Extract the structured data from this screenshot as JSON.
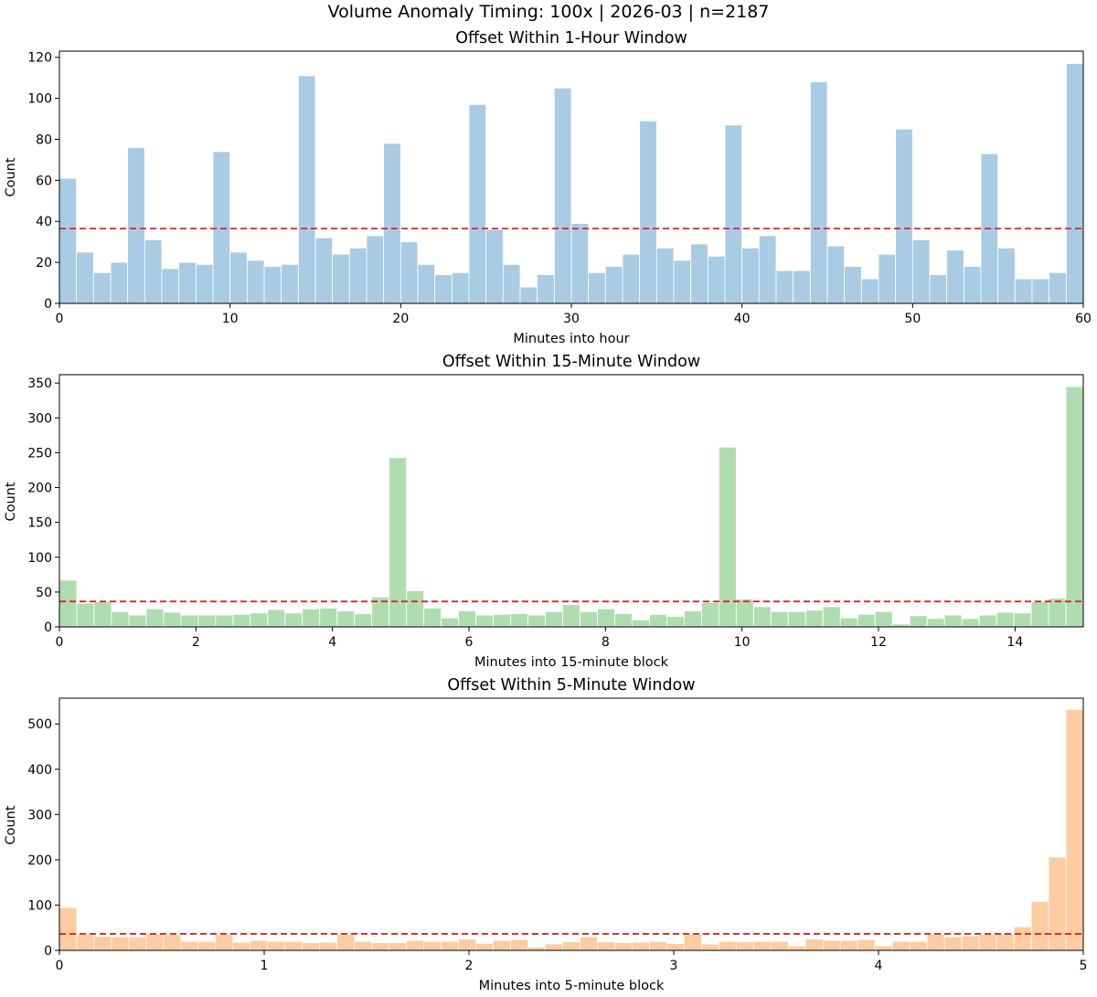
{
  "figure": {
    "suptitle": "Volume Anomaly Timing: 100x | 2026-03 | n=2187"
  },
  "chart_data": [
    {
      "type": "bar",
      "title": "Offset Within 1-Hour Window",
      "xlabel": "Minutes into hour",
      "ylabel": "Count",
      "xlim": [
        0,
        60
      ],
      "ylim": [
        0,
        123
      ],
      "xticks": [
        0,
        10,
        20,
        30,
        40,
        50,
        60
      ],
      "yticks": [
        0,
        20,
        40,
        60,
        80,
        100,
        120
      ],
      "bin_width": 1,
      "bar_color": "#a9cbe3",
      "expected_line": 36.5,
      "expected_line_color": "#d62728",
      "values": [
        61,
        25,
        15,
        20,
        76,
        31,
        17,
        20,
        19,
        74,
        25,
        21,
        18,
        19,
        111,
        32,
        24,
        27,
        33,
        78,
        30,
        19,
        14,
        15,
        97,
        36,
        19,
        8,
        14,
        105,
        39,
        15,
        18,
        24,
        89,
        27,
        21,
        29,
        23,
        87,
        27,
        33,
        16,
        16,
        108,
        28,
        18,
        12,
        24,
        85,
        31,
        14,
        26,
        18,
        73,
        27,
        12,
        12,
        15,
        117
      ]
    },
    {
      "type": "bar",
      "title": "Offset Within 15-Minute Window",
      "xlabel": "Minutes into 15-minute block",
      "ylabel": "Count",
      "xlim": [
        0,
        15
      ],
      "ylim": [
        0,
        362
      ],
      "xticks": [
        0,
        2,
        4,
        6,
        8,
        10,
        12,
        14
      ],
      "yticks": [
        0,
        50,
        100,
        150,
        200,
        250,
        300,
        350
      ],
      "bin_width": 0.25,
      "bar_color": "#b0ddb0",
      "expected_line": 36.5,
      "expected_line_color": "#d62728",
      "values": [
        67,
        34,
        36,
        22,
        17,
        26,
        21,
        17,
        17,
        17,
        18,
        20,
        25,
        20,
        26,
        27,
        23,
        19,
        43,
        243,
        52,
        27,
        13,
        23,
        17,
        18,
        19,
        17,
        22,
        32,
        22,
        26,
        19,
        10,
        18,
        15,
        23,
        35,
        258,
        40,
        29,
        22,
        22,
        24,
        29,
        13,
        18,
        22,
        4,
        16,
        12,
        17,
        12,
        17,
        21,
        20,
        36,
        41,
        345
      ]
    },
    {
      "type": "bar",
      "title": "Offset Within 5-Minute Window",
      "xlabel": "Minutes into 5-minute block",
      "ylabel": "Count",
      "xlim": [
        0,
        5
      ],
      "ylim": [
        0,
        557
      ],
      "xticks": [
        0,
        1,
        2,
        3,
        4,
        5
      ],
      "yticks": [
        0,
        100,
        200,
        300,
        400,
        500
      ],
      "bin_width": 0.08333,
      "bar_color": "#fdcca0",
      "expected_line": 36.5,
      "expected_line_color": "#d62728",
      "values": [
        95,
        35,
        31,
        30,
        30,
        36,
        35,
        20,
        20,
        35,
        18,
        22,
        20,
        20,
        17,
        18,
        35,
        20,
        17,
        17,
        22,
        20,
        20,
        25,
        15,
        22,
        24,
        7,
        14,
        19,
        30,
        19,
        17,
        18,
        20,
        15,
        35,
        14,
        20,
        19,
        20,
        20,
        10,
        25,
        22,
        22,
        24,
        10,
        20,
        20,
        35,
        30,
        32,
        35,
        36,
        52,
        108,
        206,
        532
      ]
    }
  ]
}
